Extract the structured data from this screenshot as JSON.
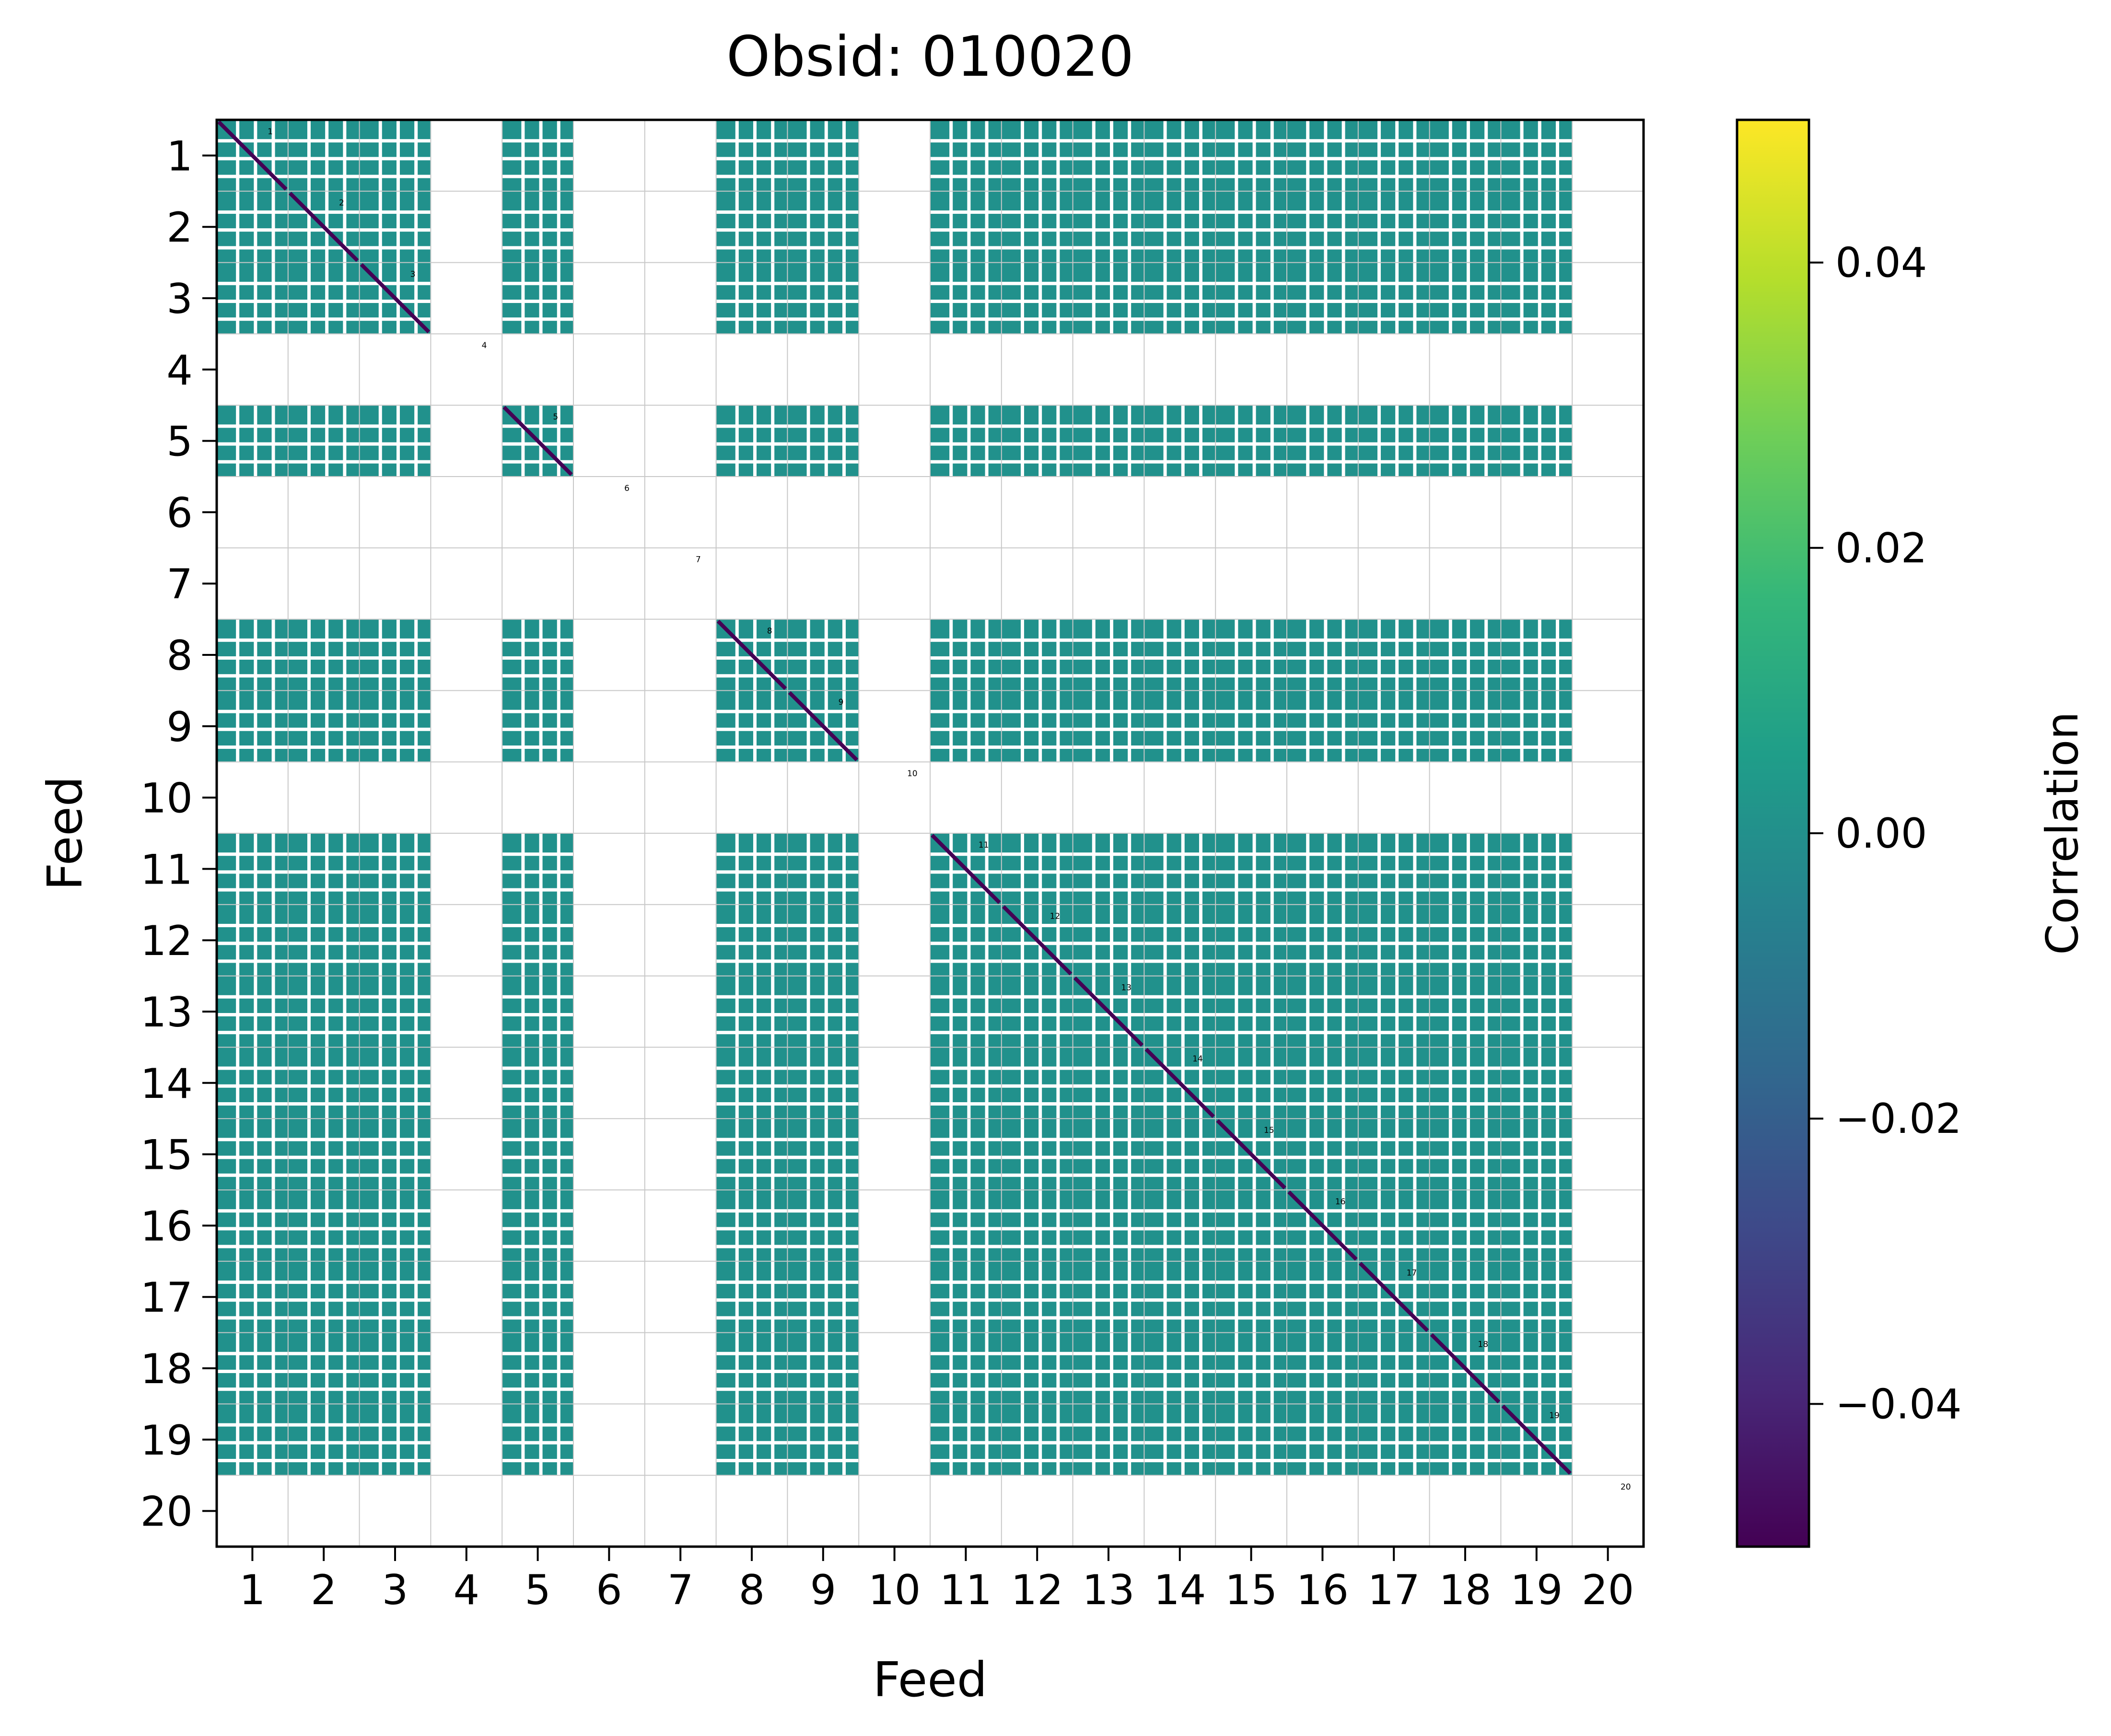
{
  "chart_data": {
    "type": "heatmap",
    "title": "Obsid: 010020",
    "xlabel": "Feed",
    "ylabel": "Feed",
    "x_ticks": [
      "1",
      "2",
      "3",
      "4",
      "5",
      "6",
      "7",
      "8",
      "9",
      "10",
      "11",
      "12",
      "13",
      "14",
      "15",
      "16",
      "17",
      "18",
      "19",
      "20"
    ],
    "y_ticks": [
      "1",
      "2",
      "3",
      "4",
      "5",
      "6",
      "7",
      "8",
      "9",
      "10",
      "11",
      "12",
      "13",
      "14",
      "15",
      "16",
      "17",
      "18",
      "19",
      "20"
    ],
    "block_labels": [
      "1",
      "2",
      "3",
      "4",
      "5",
      "6",
      "7",
      "8",
      "9",
      "10",
      "11",
      "12",
      "13",
      "14",
      "15",
      "16",
      "17",
      "18",
      "19",
      "20"
    ],
    "feed_range": [
      0.5,
      20.5
    ],
    "value_range": [
      -0.05,
      0.05
    ],
    "dominant_value": 0.0,
    "diagonal_value": -0.05,
    "flagged_feeds": [
      "4",
      "6",
      "7",
      "10",
      "20"
    ],
    "colorbar": {
      "label": "Correlation",
      "colormap": "viridis",
      "ticks": [
        "−0.04",
        "−0.02",
        "0.00",
        "0.02",
        "0.04"
      ],
      "tick_values": [
        -0.04,
        -0.02,
        0.0,
        0.02,
        0.04
      ]
    },
    "colors": {
      "zero": "#21918c",
      "diag": "#440154",
      "masked": "#ffffff",
      "grid": "#c8c8c8"
    },
    "viridis_stops": [
      "#440154",
      "#482878",
      "#3e4989",
      "#31688e",
      "#26828e",
      "#1f9e89",
      "#35b779",
      "#6ece58",
      "#b5de2b",
      "#fde725"
    ]
  }
}
